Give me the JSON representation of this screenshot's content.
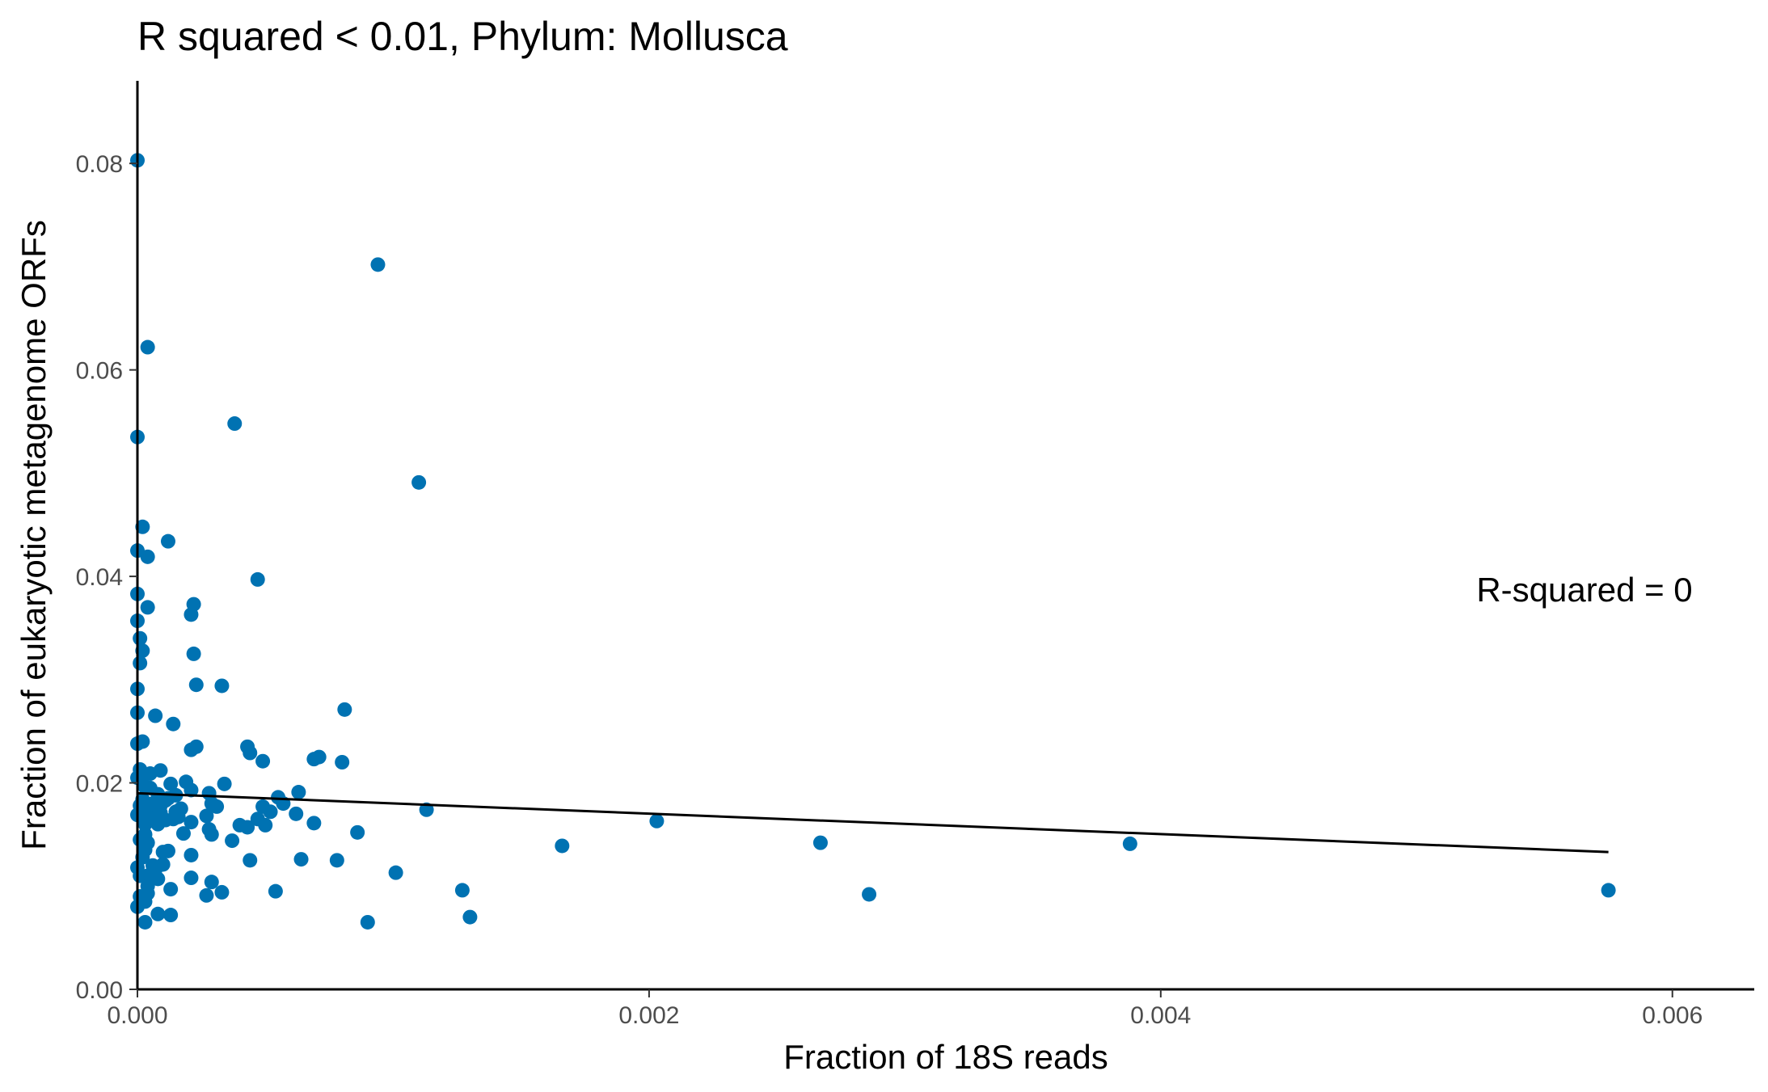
{
  "chart_data": {
    "type": "scatter",
    "title": "R squared < 0.01, Phylum:  Mollusca",
    "xlabel": "Fraction of 18S reads",
    "ylabel": "Fraction of eukaryotic metagenome ORFs",
    "xlim": [
      0,
      0.00632
    ],
    "ylim": [
      0,
      0.088
    ],
    "xticks": [
      0,
      0.002,
      0.004,
      0.006
    ],
    "xtick_labels": [
      "0.000",
      "0.002",
      "0.004",
      "0.006"
    ],
    "yticks": [
      0,
      0.02,
      0.04,
      0.06,
      0.08
    ],
    "ytick_labels": [
      "0.00",
      "0.02",
      "0.04",
      "0.06",
      "0.08"
    ],
    "point_color": "#0072B2",
    "line_color": "#000000",
    "grid": false,
    "legend": "none",
    "annotation": "R-squared =  0",
    "fit_line": {
      "x": [
        0,
        0.00575
      ],
      "y": [
        0.019,
        0.0133
      ]
    },
    "points": [
      [
        0.0,
        0.0803
      ],
      [
        0.00094,
        0.0702
      ],
      [
        4e-05,
        0.0622
      ],
      [
        0.0,
        0.0535
      ],
      [
        0.00038,
        0.0548
      ],
      [
        0.0011,
        0.0491
      ],
      [
        2e-05,
        0.0448
      ],
      [
        0.00012,
        0.0434
      ],
      [
        0.0,
        0.0425
      ],
      [
        4e-05,
        0.0419
      ],
      [
        0.00047,
        0.0397
      ],
      [
        0.0,
        0.0383
      ],
      [
        4e-05,
        0.037
      ],
      [
        0.00022,
        0.0373
      ],
      [
        0.00021,
        0.0363
      ],
      [
        0.0,
        0.0357
      ],
      [
        1e-05,
        0.034
      ],
      [
        2e-05,
        0.0328
      ],
      [
        0.00022,
        0.0325
      ],
      [
        1e-05,
        0.0316
      ],
      [
        0.00023,
        0.0295
      ],
      [
        0.00033,
        0.0294
      ],
      [
        0.0,
        0.0291
      ],
      [
        0.00081,
        0.0271
      ],
      [
        0.0,
        0.0268
      ],
      [
        7e-05,
        0.0265
      ],
      [
        0.00014,
        0.0257
      ],
      [
        2e-05,
        0.024
      ],
      [
        0.0,
        0.0238
      ],
      [
        0.00023,
        0.0235
      ],
      [
        0.00043,
        0.0235
      ],
      [
        0.00021,
        0.0232
      ],
      [
        0.00044,
        0.0229
      ],
      [
        0.00071,
        0.0225
      ],
      [
        0.00069,
        0.0223
      ],
      [
        0.00049,
        0.0221
      ],
      [
        0.0008,
        0.022
      ],
      [
        1e-05,
        0.0213
      ],
      [
        9e-05,
        0.0212
      ],
      [
        5e-05,
        0.0209
      ],
      [
        0.0,
        0.0205
      ],
      [
        0.00019,
        0.0201
      ],
      [
        0.00013,
        0.0199
      ],
      [
        0.00034,
        0.0199
      ],
      [
        3e-05,
        0.0196
      ],
      [
        0.00021,
        0.0193
      ],
      [
        0.00063,
        0.0191
      ],
      [
        0.00028,
        0.019
      ],
      [
        8e-05,
        0.0189
      ],
      [
        0.00055,
        0.0186
      ],
      [
        2e-05,
        0.0184
      ],
      [
        0.00011,
        0.0183
      ],
      [
        0.00029,
        0.018
      ],
      [
        0.00057,
        0.018
      ],
      [
        1e-05,
        0.0178
      ],
      [
        0.00049,
        0.0177
      ],
      [
        0.00031,
        0.0177
      ],
      [
        5e-05,
        0.0175
      ],
      [
        0.00113,
        0.0174
      ],
      [
        0.00015,
        0.0172
      ],
      [
        0.00052,
        0.0172
      ],
      [
        9e-05,
        0.0171
      ],
      [
        0.00062,
        0.017
      ],
      [
        0.0,
        0.0169
      ],
      [
        0.00027,
        0.0168
      ],
      [
        0.00016,
        0.0167
      ],
      [
        7e-05,
        0.0166
      ],
      [
        0.00047,
        0.0165
      ],
      [
        0.00011,
        0.0164
      ],
      [
        0.00021,
        0.0162
      ],
      [
        0.00203,
        0.0163
      ],
      [
        0.00069,
        0.0161
      ],
      [
        3e-05,
        0.016
      ],
      [
        0.0005,
        0.0159
      ],
      [
        0.0004,
        0.0159
      ],
      [
        0.00043,
        0.0157
      ],
      [
        0.00028,
        0.0155
      ],
      [
        0.00086,
        0.0152
      ],
      [
        0.00018,
        0.0151
      ],
      [
        0.00029,
        0.015
      ],
      [
        0.00037,
        0.0144
      ],
      [
        4e-05,
        0.0142
      ],
      [
        0.00267,
        0.0142
      ],
      [
        0.00388,
        0.0141
      ],
      [
        0.00166,
        0.0139
      ],
      [
        0.00012,
        0.0134
      ],
      [
        0.0001,
        0.0133
      ],
      [
        0.00021,
        0.013
      ],
      [
        2e-05,
        0.0128
      ],
      [
        0.00064,
        0.0126
      ],
      [
        0.00044,
        0.0125
      ],
      [
        0.00078,
        0.0125
      ],
      [
        0.0001,
        0.0121
      ],
      [
        0.0,
        0.0118
      ],
      [
        7e-05,
        0.0116
      ],
      [
        0.00101,
        0.0113
      ],
      [
        4e-05,
        0.011
      ],
      [
        0.00021,
        0.0108
      ],
      [
        8e-05,
        0.0107
      ],
      [
        0.00029,
        0.0104
      ],
      [
        0.00013,
        0.0097
      ],
      [
        0.00127,
        0.0096
      ],
      [
        0.00575,
        0.0096
      ],
      [
        0.00054,
        0.0095
      ],
      [
        0.00033,
        0.0094
      ],
      [
        4e-05,
        0.0093
      ],
      [
        0.00027,
        0.0091
      ],
      [
        0.00286,
        0.0092
      ],
      [
        1e-05,
        0.009
      ],
      [
        3e-05,
        0.0085
      ],
      [
        0.0,
        0.008
      ],
      [
        8e-05,
        0.0073
      ],
      [
        0.00013,
        0.0072
      ],
      [
        0.0013,
        0.007
      ],
      [
        0.0009,
        0.0065
      ],
      [
        3e-05,
        0.0065
      ],
      [
        6e-05,
        0.018
      ],
      [
        3e-05,
        0.015
      ],
      [
        8e-05,
        0.016
      ],
      [
        0.00012,
        0.0185
      ],
      [
        2e-05,
        0.017
      ],
      [
        5e-05,
        0.0195
      ],
      [
        1e-05,
        0.0145
      ],
      [
        9e-05,
        0.0178
      ],
      [
        0.00014,
        0.0165
      ],
      [
        1e-05,
        0.011
      ],
      [
        3e-05,
        0.0135
      ],
      [
        6e-05,
        0.012
      ],
      [
        0.00015,
        0.0188
      ],
      [
        0.00017,
        0.0175
      ],
      [
        4e-05,
        0.01
      ],
      [
        2e-05,
        0.0205
      ]
    ]
  }
}
